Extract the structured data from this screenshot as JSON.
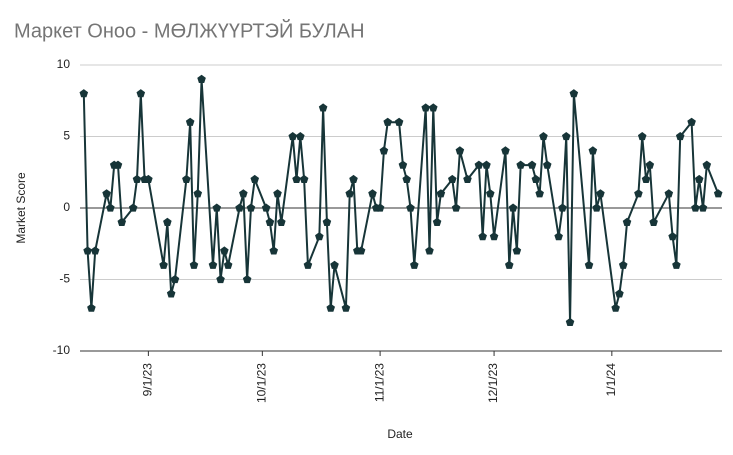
{
  "chart_data": {
    "type": "line",
    "title": "Маркет Оноо - МӨЛЖҮҮРТЭЙ БУЛАН",
    "x_label": "Date",
    "y_label": "Market Score",
    "color": "#173538",
    "marker": "pentagon",
    "grid": true,
    "x": [
      "2023-08-15",
      "2023-08-16",
      "2023-08-17",
      "2023-08-18",
      "2023-08-21",
      "2023-08-22",
      "2023-08-23",
      "2023-08-24",
      "2023-08-25",
      "2023-08-28",
      "2023-08-29",
      "2023-08-30",
      "2023-08-31",
      "2023-09-01",
      "2023-09-05",
      "2023-09-06",
      "2023-09-07",
      "2023-09-08",
      "2023-09-11",
      "2023-09-12",
      "2023-09-13",
      "2023-09-14",
      "2023-09-15",
      "2023-09-18",
      "2023-09-19",
      "2023-09-20",
      "2023-09-21",
      "2023-09-22",
      "2023-09-25",
      "2023-09-26",
      "2023-09-27",
      "2023-09-28",
      "2023-09-29",
      "2023-10-02",
      "2023-10-03",
      "2023-10-04",
      "2023-10-05",
      "2023-10-06",
      "2023-10-09",
      "2023-10-10",
      "2023-10-11",
      "2023-10-12",
      "2023-10-13",
      "2023-10-16",
      "2023-10-17",
      "2023-10-18",
      "2023-10-19",
      "2023-10-20",
      "2023-10-23",
      "2023-10-24",
      "2023-10-25",
      "2023-10-26",
      "2023-10-27",
      "2023-10-30",
      "2023-10-31",
      "2023-11-01",
      "2023-11-02",
      "2023-11-03",
      "2023-11-06",
      "2023-11-07",
      "2023-11-08",
      "2023-11-09",
      "2023-11-10",
      "2023-11-13",
      "2023-11-14",
      "2023-11-15",
      "2023-11-16",
      "2023-11-17",
      "2023-11-20",
      "2023-11-21",
      "2023-11-22",
      "2023-11-24",
      "2023-11-27",
      "2023-11-28",
      "2023-11-29",
      "2023-11-30",
      "2023-12-01",
      "2023-12-04",
      "2023-12-05",
      "2023-12-06",
      "2023-12-07",
      "2023-12-08",
      "2023-12-11",
      "2023-12-12",
      "2023-12-13",
      "2023-12-14",
      "2023-12-15",
      "2023-12-18",
      "2023-12-19",
      "2023-12-20",
      "2023-12-21",
      "2023-12-22",
      "2023-12-26",
      "2023-12-27",
      "2023-12-28",
      "2023-12-29",
      "2024-01-02",
      "2024-01-03",
      "2024-01-04",
      "2024-01-05",
      "2024-01-08",
      "2024-01-09",
      "2024-01-10",
      "2024-01-11",
      "2024-01-12",
      "2024-01-16",
      "2024-01-17",
      "2024-01-18",
      "2024-01-19",
      "2024-01-22",
      "2024-01-23",
      "2024-01-24",
      "2024-01-25",
      "2024-01-26",
      "2024-01-29"
    ],
    "values": [
      8,
      -3,
      -7,
      -3,
      1,
      0,
      3,
      3,
      -1,
      0,
      2,
      8,
      2,
      2,
      -4,
      -1,
      -6,
      -5,
      2,
      6,
      -4,
      1,
      9,
      -4,
      0,
      -5,
      -3,
      -4,
      0,
      1,
      -5,
      0,
      2,
      0,
      -1,
      -3,
      1,
      -1,
      5,
      2,
      5,
      2,
      -4,
      -2,
      7,
      -1,
      -7,
      -4,
      -7,
      1,
      2,
      -3,
      -3,
      1,
      0,
      0,
      4,
      6,
      6,
      3,
      2,
      0,
      -4,
      7,
      -3,
      7,
      -1,
      1,
      2,
      0,
      4,
      2,
      3,
      -2,
      3,
      1,
      -2,
      4,
      -4,
      0,
      -3,
      3,
      3,
      2,
      1,
      5,
      3,
      -2,
      0,
      5,
      -8,
      8,
      -4,
      4,
      0,
      1,
      -7,
      -6,
      -4,
      -1,
      1,
      5,
      2,
      3,
      -1,
      1,
      -2,
      -4,
      5,
      6,
      0,
      2,
      0,
      3,
      1
    ],
    "xlim": [
      "2023-08-14",
      "2024-01-30"
    ],
    "xticks": [
      {
        "value": "2023-09-01",
        "label": "9/1/23"
      },
      {
        "value": "2023-10-01",
        "label": "10/1/23"
      },
      {
        "value": "2023-11-01",
        "label": "11/1/23"
      },
      {
        "value": "2023-12-01",
        "label": "12/1/23"
      },
      {
        "value": "2024-01-01",
        "label": "1/1/24"
      }
    ],
    "ylim": [
      -10,
      10
    ],
    "yticks": [
      -10,
      -5,
      0,
      5,
      10
    ]
  }
}
